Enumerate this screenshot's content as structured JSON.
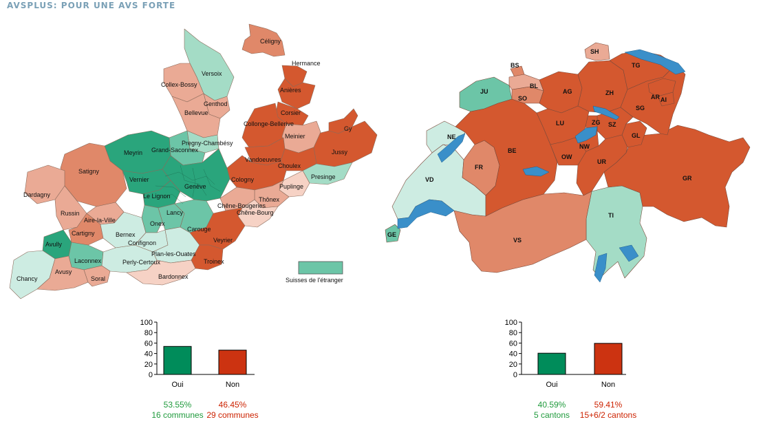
{
  "header": {
    "title": "AVSPLUS: POUR UNE AVS FORTE"
  },
  "colors": {
    "yes_strong": "#2aa57c",
    "yes_mid": "#6cc5a7",
    "yes_light": "#a4dcc6",
    "yes_pale": "#cdece2",
    "no_strong": "#d4582f",
    "no_mid": "#e08869",
    "no_light": "#eaaa95",
    "no_pale": "#f6d2c5",
    "lake": "#3a8fc9",
    "bar_yes": "#008c5a",
    "bar_no": "#cc3311"
  },
  "geneva_map": {
    "communes": [
      "Céligny",
      "Hermance",
      "Versoix",
      "Collex-Bossy",
      "Genthod",
      "Bellevue",
      "Anières",
      "Corsier",
      "Collonge-Bellerive",
      "Meinier",
      "Gy",
      "Pregny-Chambésy",
      "Grand-Saconnex",
      "Meyrin",
      "Jussy",
      "Vandoeuvres",
      "Choulex",
      "Satigny",
      "Vernier",
      "Genève",
      "Presinge",
      "Cologny",
      "Puplinge",
      "Le Lignon",
      "Dardagny",
      "Thônex",
      "Chêne-Bougeries",
      "Chêne-Bourg",
      "Russin",
      "Aire-la-Ville",
      "Lancy",
      "Onex",
      "Carouge",
      "Cartigny",
      "Bernex",
      "Confignon",
      "Veyrier",
      "Avully",
      "Plan-les-Ouates",
      "Laconnex",
      "Perly-Certoux",
      "Troinex",
      "Chancy",
      "Avusy",
      "Soral",
      "Bardonnex"
    ],
    "legend_label": "Suisses de l'étranger"
  },
  "swiss_map": {
    "cantons": [
      "BS",
      "SH",
      "TG",
      "JU",
      "BL",
      "AG",
      "ZH",
      "SO",
      "AR",
      "AI",
      "SG",
      "ZG",
      "LU",
      "SZ",
      "NE",
      "GL",
      "BE",
      "NW",
      "OW",
      "FR",
      "UR",
      "VD",
      "GR",
      "TI",
      "GE",
      "VS"
    ]
  },
  "chart_data": [
    {
      "type": "bar",
      "title": "",
      "categories": [
        "Oui",
        "Non"
      ],
      "values": [
        53.55,
        46.45
      ],
      "ylim": [
        0,
        100
      ],
      "yticks": [
        "100",
        "80",
        "60",
        "40",
        "20",
        "0"
      ],
      "percent_labels": [
        "53.55%",
        "46.45%"
      ],
      "count_labels": [
        "16 communes",
        "29 communes"
      ]
    },
    {
      "type": "bar",
      "title": "",
      "categories": [
        "Oui",
        "Non"
      ],
      "values": [
        40.59,
        59.41
      ],
      "ylim": [
        0,
        100
      ],
      "yticks": [
        "100",
        "80",
        "60",
        "40",
        "20",
        "0"
      ],
      "percent_labels": [
        "40.59%",
        "59.41%"
      ],
      "count_labels": [
        "5 cantons",
        "15+6/2 cantons"
      ]
    }
  ]
}
